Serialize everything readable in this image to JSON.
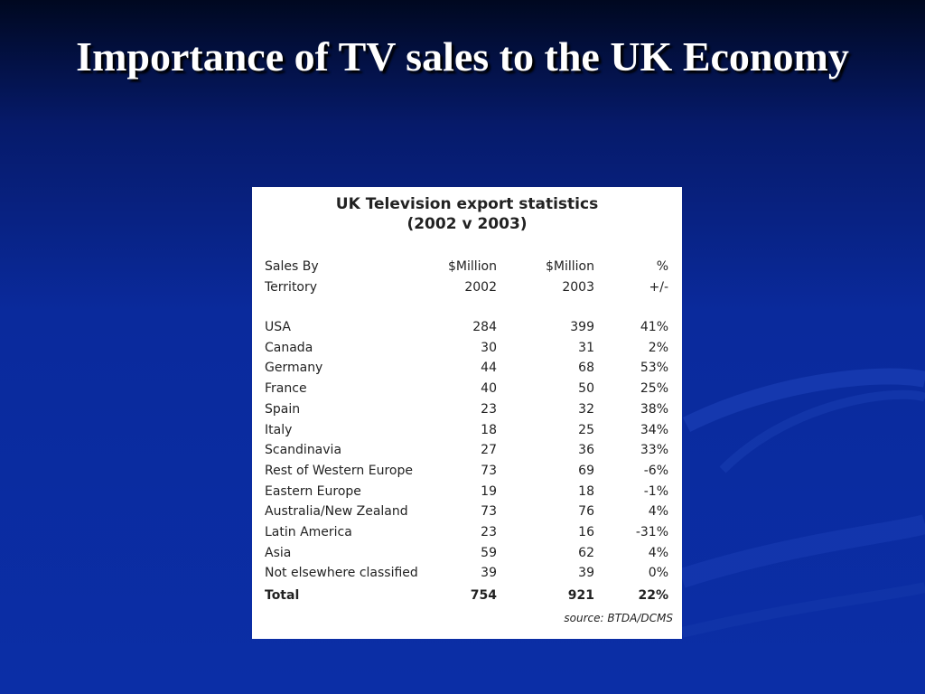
{
  "slide": {
    "title": "Importance of TV sales to the UK Economy"
  },
  "table": {
    "title": [
      "UK Television export statistics",
      "(2002 v 2003)"
    ],
    "header": [
      [
        "Sales By",
        "$Million",
        "$Million",
        "%"
      ],
      [
        "Territory",
        "2002",
        "2003",
        "+/-"
      ]
    ],
    "rows": [
      [
        "USA",
        "284",
        "399",
        "41%"
      ],
      [
        "Canada",
        "30",
        "31",
        "2%"
      ],
      [
        "Germany",
        "44",
        "68",
        "53%"
      ],
      [
        "France",
        "40",
        "50",
        "25%"
      ],
      [
        "Spain",
        "23",
        "32",
        "38%"
      ],
      [
        "Italy",
        "18",
        "25",
        "34%"
      ],
      [
        "Scandinavia",
        "27",
        "36",
        "33%"
      ],
      [
        "Rest of Western Europe",
        "73",
        "69",
        "-6%"
      ],
      [
        "Eastern Europe",
        "19",
        "18",
        "-1%"
      ],
      [
        "Australia/New Zealand",
        "73",
        "76",
        "4%"
      ],
      [
        "Latin America",
        "23",
        "16",
        "-31%"
      ],
      [
        "Asia",
        "59",
        "62",
        "4%"
      ],
      [
        "Not elsewhere classified",
        "39",
        "39",
        "0%"
      ]
    ],
    "total": [
      "Total",
      "754",
      "921",
      "22%"
    ],
    "source": "source: BTDA/DCMS"
  }
}
